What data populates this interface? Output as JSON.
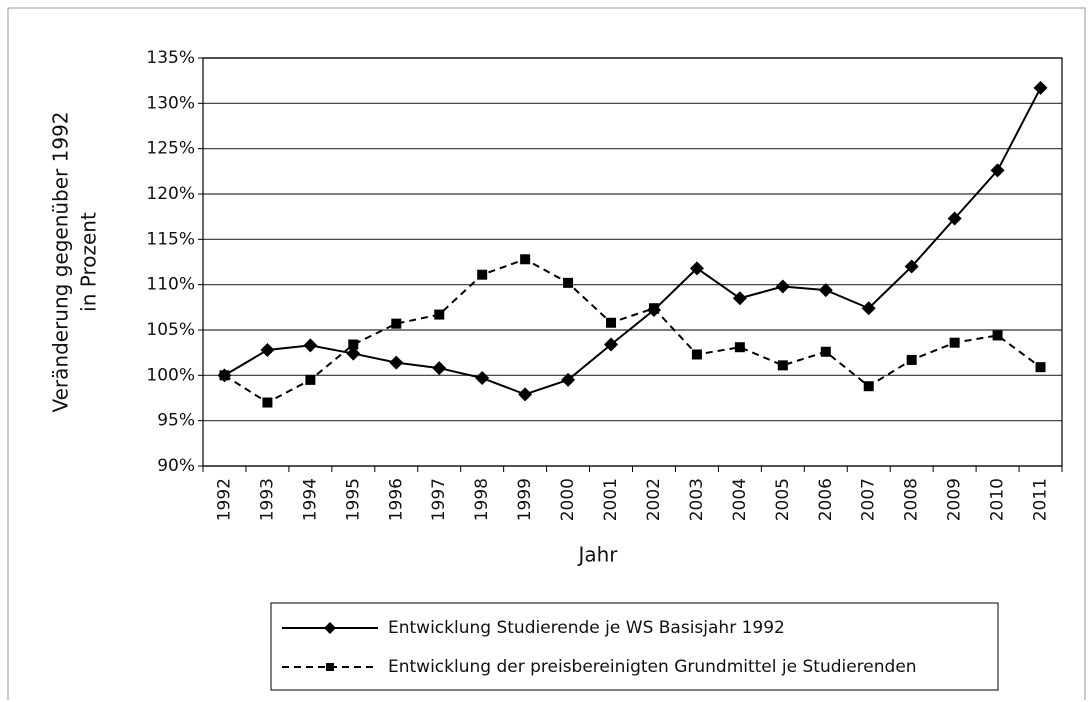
{
  "chart_data": {
    "type": "line",
    "ylabel": [
      "Veränderung gegenüber 1992",
      "in Prozent"
    ],
    "xlabel": "Jahr",
    "categories": [
      "1992",
      "1993",
      "1994",
      "1995",
      "1996",
      "1997",
      "1998",
      "1999",
      "2000",
      "2001",
      "2002",
      "2003",
      "2004",
      "2005",
      "2006",
      "2007",
      "2008",
      "2009",
      "2010",
      "2011"
    ],
    "series": [
      {
        "name": "Entwicklung Studierende je WS Basisjahr 1992",
        "color": "#000000",
        "dash": "solid",
        "marker": "diamond",
        "values": [
          100,
          102.8,
          103.3,
          102.4,
          101.4,
          100.8,
          99.7,
          97.9,
          99.5,
          103.4,
          107.2,
          111.8,
          108.5,
          109.8,
          109.4,
          107.4,
          112.0,
          117.3,
          122.6,
          131.7
        ]
      },
      {
        "name": "Entwicklung der preisbereinigten Grundmittel je Studierenden",
        "color": "#000000",
        "dash": "dashed",
        "marker": "square",
        "values": [
          100,
          97.0,
          99.5,
          103.4,
          105.7,
          106.7,
          111.1,
          112.8,
          110.2,
          105.8,
          107.4,
          102.3,
          103.1,
          101.1,
          102.6,
          98.8,
          101.7,
          103.6,
          104.4,
          100.9
        ]
      }
    ],
    "ylim": [
      90,
      135
    ],
    "yticks": [
      {
        "value": 90,
        "label": "90%"
      },
      {
        "value": 95,
        "label": "95%"
      },
      {
        "value": 100,
        "label": "100%"
      },
      {
        "value": 105,
        "label": "105%"
      },
      {
        "value": 110,
        "label": "110%"
      },
      {
        "value": 115,
        "label": "115%"
      },
      {
        "value": 120,
        "label": "120%"
      },
      {
        "value": 125,
        "label": "125%"
      },
      {
        "value": 130,
        "label": "130%"
      },
      {
        "value": 135,
        "label": "135%"
      }
    ],
    "grid": true,
    "legend": "bottom"
  }
}
